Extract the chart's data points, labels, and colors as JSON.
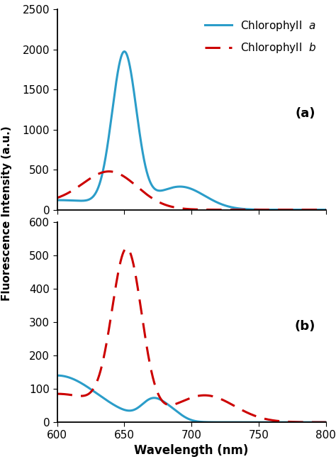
{
  "xlim": [
    600,
    800
  ],
  "xlabel": "Wavelength (nm)",
  "ylabel": "Fluorescence Intensity (a.u.)",
  "panel_a": {
    "ylim": [
      0,
      2500
    ],
    "yticks": [
      0,
      500,
      1000,
      1500,
      2000,
      2500
    ],
    "label": "(a)"
  },
  "panel_b": {
    "ylim": [
      0,
      600
    ],
    "yticks": [
      0,
      100,
      200,
      300,
      400,
      500,
      600
    ],
    "label": "(b)"
  },
  "chl_a_color": "#2B9DC9",
  "chl_b_color": "#CC0000",
  "legend_chl_a": "Chlorophyll  $\\it{a}$",
  "legend_chl_b": "Chlorophyll  $\\it{b}$",
  "background_color": "#ffffff",
  "xticks": [
    600,
    650,
    700,
    750,
    800
  ]
}
